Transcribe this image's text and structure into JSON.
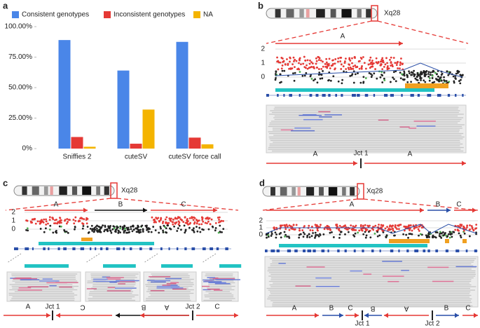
{
  "chart_data": {
    "type": "bar",
    "panel_label": "a",
    "categories": [
      "Sniffies 2",
      "cuteSV",
      "cuteSV force call"
    ],
    "series": [
      {
        "name": "Consistent genotypes",
        "color": "#4a86e8",
        "values": [
          89,
          64,
          87.5
        ]
      },
      {
        "name": "Inconsistent genotypes",
        "color": "#e53935",
        "values": [
          9.5,
          4,
          9
        ]
      },
      {
        "name": "NA",
        "color": "#f4b400",
        "values": [
          1.5,
          32,
          3.5
        ]
      }
    ],
    "ylim": [
      0,
      100
    ],
    "yticks": [
      {
        "value": 0,
        "label": "0%"
      },
      {
        "value": 25,
        "label": "25.00%"
      },
      {
        "value": 50,
        "label": "50.00%"
      },
      {
        "value": 75,
        "label": "75.00%"
      },
      {
        "value": 100,
        "label": "100.00%"
      }
    ],
    "legend": "top"
  },
  "panels": {
    "b": {
      "label": "b",
      "region": "Xq28",
      "segments": [
        "A"
      ],
      "cn_ticks": [
        2,
        1,
        0
      ],
      "junction_row": [
        "A",
        "Jct 1",
        "A"
      ]
    },
    "c": {
      "label": "c",
      "region": "Xq28",
      "segments": [
        "A",
        "B",
        "C"
      ],
      "cn_ticks": [
        2,
        1,
        0
      ],
      "junction_row": [
        "A",
        "Jct 1",
        "C",
        "B",
        "A",
        "Jct 2",
        "C"
      ]
    },
    "d": {
      "label": "d",
      "region": "Xq28",
      "segments": [
        "A",
        "B",
        "C"
      ],
      "cn_ticks": [
        2,
        1,
        0
      ],
      "junction_row": [
        "A",
        "B",
        "C",
        "Jct 1",
        "B",
        "A",
        "Jct 2",
        "B",
        "C"
      ]
    }
  }
}
